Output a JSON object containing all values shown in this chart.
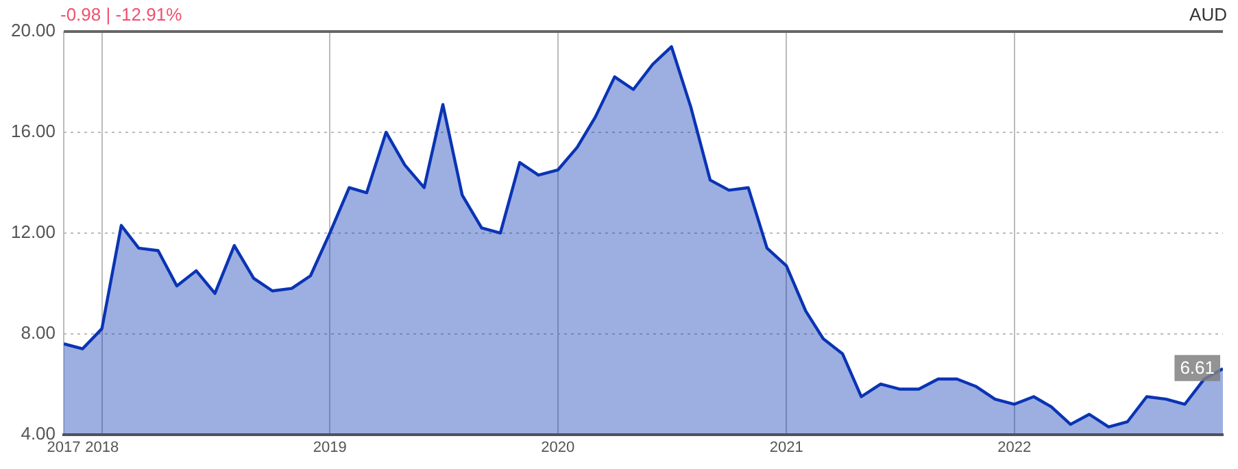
{
  "chart_data": {
    "type": "area",
    "subtitle": "-0.98 | -12.91%",
    "ylabel": "AUD",
    "x": [
      "2017-11",
      "2017-12",
      "2018-01",
      "2018-02",
      "2018-03",
      "2018-04",
      "2018-05",
      "2018-06",
      "2018-07",
      "2018-08",
      "2018-09",
      "2018-10",
      "2018-11",
      "2018-12",
      "2019-01",
      "2019-02",
      "2019-03",
      "2019-04",
      "2019-05",
      "2019-06",
      "2019-07",
      "2019-08",
      "2019-09",
      "2019-10",
      "2019-11",
      "2019-12",
      "2020-01",
      "2020-02",
      "2020-03",
      "2020-04",
      "2020-05",
      "2020-06",
      "2020-07",
      "2020-08",
      "2020-09",
      "2020-10",
      "2020-11",
      "2020-12",
      "2021-01",
      "2021-02",
      "2021-03",
      "2021-04",
      "2021-05",
      "2021-06",
      "2021-07",
      "2021-08",
      "2021-09",
      "2021-10",
      "2021-11",
      "2021-12",
      "2022-01",
      "2022-02",
      "2022-03",
      "2022-04",
      "2022-05",
      "2022-06",
      "2022-07",
      "2022-08",
      "2022-09",
      "2022-10",
      "2022-11",
      "2022-12"
    ],
    "series": [
      {
        "color": "#0a34b4",
        "values": [
          7.6,
          7.4,
          8.2,
          12.3,
          11.4,
          11.3,
          9.9,
          10.5,
          9.6,
          11.5,
          10.2,
          9.7,
          9.8,
          10.3,
          12.0,
          13.8,
          13.6,
          16.0,
          14.7,
          13.8,
          17.1,
          13.5,
          12.2,
          12.0,
          14.8,
          14.3,
          14.5,
          15.4,
          16.6,
          18.2,
          17.7,
          18.7,
          19.4,
          17.0,
          14.1,
          13.7,
          13.8,
          11.4,
          10.7,
          8.9,
          7.8,
          7.2,
          5.5,
          6.0,
          5.8,
          5.8,
          6.2,
          6.2,
          5.9,
          5.4,
          5.2,
          5.5,
          5.1,
          4.4,
          4.8,
          4.3,
          4.5,
          5.5,
          5.4,
          5.2,
          6.2,
          6.61
        ],
        "value_labels": [
          null,
          null,
          null,
          null,
          null,
          null,
          null,
          null,
          null,
          null,
          null,
          null,
          null,
          null,
          null,
          null,
          null,
          null,
          null,
          null,
          null,
          null,
          null,
          null,
          null,
          null,
          null,
          null,
          null,
          null,
          null,
          null,
          null,
          null,
          null,
          null,
          null,
          null,
          null,
          null,
          null,
          null,
          null,
          null,
          null,
          null,
          null,
          null,
          null,
          null,
          null,
          null,
          null,
          null,
          null,
          null,
          null,
          null,
          null,
          null,
          null,
          "6.61"
        ]
      }
    ],
    "xlim": [
      "2017-11",
      "2022-12"
    ],
    "xticks": [
      {
        "value": "2017-11",
        "label": "2017"
      },
      {
        "value": "2018-01",
        "label": "2018"
      },
      {
        "value": "2019-01",
        "label": "2019"
      },
      {
        "value": "2020-01",
        "label": "2020"
      },
      {
        "value": "2021-01",
        "label": "2021"
      },
      {
        "value": "2022-01",
        "label": "2022"
      }
    ],
    "ylim": [
      4,
      20
    ],
    "yticks": [
      {
        "value": 4,
        "label": "4.00"
      },
      {
        "value": 8,
        "label": "8.00"
      },
      {
        "value": 12,
        "label": "12.00"
      },
      {
        "value": 16,
        "label": "16.00"
      },
      {
        "value": 20,
        "label": "20.00"
      }
    ],
    "grid": true,
    "marker": "none",
    "line_style": "solid"
  }
}
